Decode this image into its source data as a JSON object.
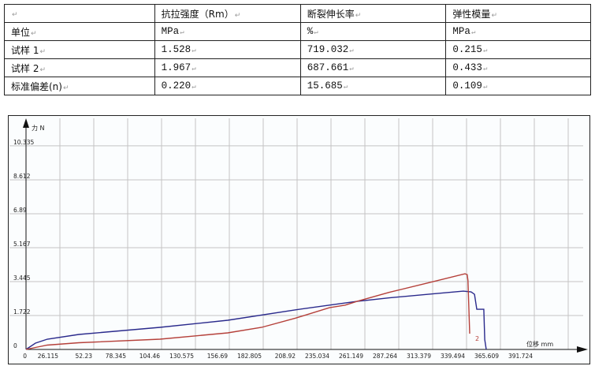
{
  "table": {
    "header": [
      "",
      "抗拉强度（Rm）",
      "断裂伸长率",
      "弹性模量"
    ],
    "rows": [
      [
        "单位",
        "MPa",
        "%",
        "MPa"
      ],
      [
        "试样 1",
        "1.528",
        "719.032",
        "0.215"
      ],
      [
        "试样 2",
        "1.967",
        "687.661",
        "0.433"
      ],
      [
        "标准偏差(n)",
        "0.220",
        "15.685",
        "0.109"
      ]
    ]
  },
  "chart_data": {
    "type": "line",
    "xlabel": "位移 mm",
    "ylabel": "力 N",
    "xlim": [
      0,
      410
    ],
    "ylim": [
      0,
      11.2
    ],
    "xticks": [
      "0",
      "26.115",
      "52.23",
      "78.345",
      "104.46",
      "130.575",
      "156.69",
      "182.805",
      "208.92",
      "235.034",
      "261.149",
      "287.264",
      "313.379",
      "339.494",
      "365.609",
      "391.724"
    ],
    "xtick_values": [
      0,
      26.115,
      52.23,
      78.345,
      104.46,
      130.575,
      156.69,
      182.805,
      208.92,
      235.034,
      261.149,
      287.264,
      313.379,
      339.494,
      365.609,
      391.724
    ],
    "yticks": [
      "0",
      "1.722",
      "3.445",
      "5.167",
      "6.89",
      "8.612",
      "10.335"
    ],
    "ytick_values": [
      0,
      1.722,
      3.445,
      5.167,
      6.89,
      8.612,
      10.335
    ],
    "grid": true,
    "annotation": "2",
    "series": [
      {
        "color": "#2a2a8c",
        "x": [
          0,
          7.3,
          16.4,
          40.7,
          103.2,
          155.5,
          207.7,
          246,
          255,
          280,
          310,
          337,
          343,
          345.6,
          347.4,
          352.8,
          353.5,
          354.7
        ],
        "y": [
          0,
          0.32,
          0.52,
          0.76,
          1.12,
          1.48,
          2.01,
          2.36,
          2.44,
          2.62,
          2.8,
          2.96,
          2.92,
          2.8,
          2.04,
          2.04,
          0.5,
          0
        ]
      },
      {
        "color": "#b5403a",
        "x": [
          0,
          7.3,
          16.4,
          40.7,
          103.2,
          155.5,
          181.6,
          207.7,
          233.8,
          246,
          255,
          280,
          310,
          338.3,
          340,
          340.6,
          341.9
        ],
        "y": [
          0,
          0.1,
          0.22,
          0.34,
          0.52,
          0.84,
          1.12,
          1.59,
          2.12,
          2.25,
          2.44,
          2.9,
          3.38,
          3.84,
          3.8,
          3.5,
          0.8
        ]
      }
    ]
  }
}
